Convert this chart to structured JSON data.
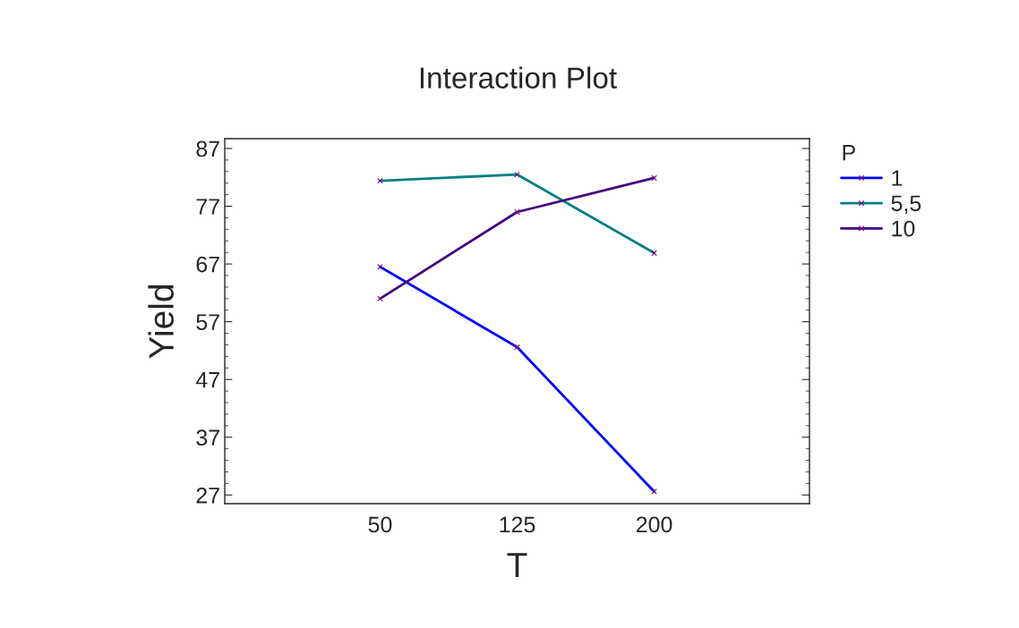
{
  "chart_data": {
    "type": "line",
    "title": "Interaction Plot",
    "xlabel": "T",
    "ylabel": "Yield",
    "legend_title": "P",
    "x": [
      50,
      125,
      200
    ],
    "series": [
      {
        "name": "1",
        "color": "#0000ff",
        "values": [
          66.5,
          52.6,
          27.6
        ]
      },
      {
        "name": "5,5",
        "color": "#008080",
        "values": [
          81.4,
          82.5,
          68.9
        ]
      },
      {
        "name": "10",
        "color": "#400080",
        "values": [
          61.0,
          76.0,
          81.9
        ]
      }
    ],
    "xlim": [
      -35,
      285
    ],
    "xticks": [
      50,
      125,
      200
    ],
    "ylim": [
      25.5,
      88.7
    ],
    "yticks": [
      27,
      37,
      47,
      57,
      67,
      77,
      87
    ],
    "grid": false,
    "legend": "top right",
    "marker": "cross",
    "line_style": "solid"
  }
}
